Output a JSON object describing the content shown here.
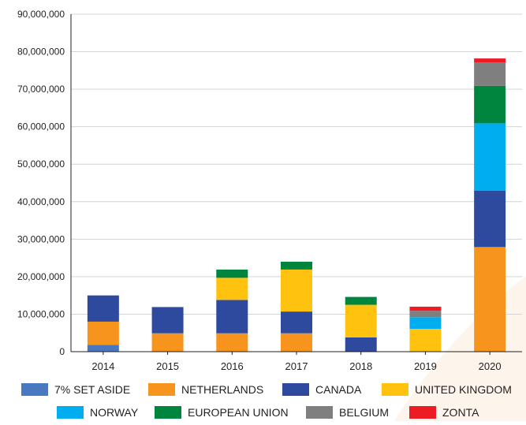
{
  "chart_data": {
    "type": "bar",
    "stacked": true,
    "title": "",
    "xlabel": "",
    "ylabel": "",
    "categories": [
      "2014",
      "2015",
      "2016",
      "2017",
      "2018",
      "2019",
      "2020"
    ],
    "ylim": [
      0,
      90000000
    ],
    "yticks": [
      0,
      10000000,
      20000000,
      30000000,
      40000000,
      50000000,
      60000000,
      70000000,
      80000000,
      90000000
    ],
    "ytick_labels": [
      "0",
      "10,000,000",
      "20,000,000",
      "30,000,000",
      "40,000,000",
      "50,000,000",
      "60,000,000",
      "70,000,000",
      "80,000,000",
      "90,000,000"
    ],
    "grid": "horizontal",
    "legend_position": "bottom",
    "series": [
      {
        "name": "7% SET ASIDE",
        "color": "#4a78c0",
        "values": [
          1800000,
          0,
          0,
          0,
          0,
          0,
          0
        ]
      },
      {
        "name": "NETHERLANDS",
        "color": "#f7941d",
        "values": [
          6200000,
          4900000,
          4900000,
          4900000,
          0,
          0,
          27900000
        ]
      },
      {
        "name": "CANADA",
        "color": "#2e4a9e",
        "values": [
          7000000,
          7000000,
          8900000,
          5800000,
          3800000,
          0,
          15000000
        ]
      },
      {
        "name": "UNITED KINGDOM",
        "color": "#ffc20e",
        "values": [
          0,
          0,
          5900000,
          11200000,
          8700000,
          6100000,
          0
        ]
      },
      {
        "name": "NORWAY",
        "color": "#00aeef",
        "values": [
          0,
          0,
          0,
          0,
          0,
          3100000,
          18000000
        ]
      },
      {
        "name": "EUROPEAN UNION",
        "color": "#00853f",
        "values": [
          0,
          0,
          2200000,
          2100000,
          2100000,
          0,
          10000000
        ]
      },
      {
        "name": "BELGIUM",
        "color": "#7f7f7f",
        "values": [
          0,
          0,
          0,
          0,
          0,
          1700000,
          6200000
        ]
      },
      {
        "name": "ZONTA",
        "color": "#ed1c24",
        "values": [
          0,
          0,
          0,
          0,
          0,
          1100000,
          1100000
        ]
      }
    ]
  }
}
